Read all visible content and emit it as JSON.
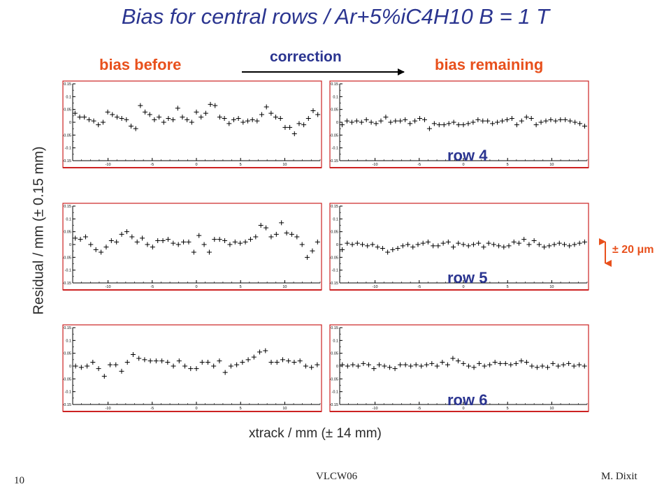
{
  "slide": {
    "title": "Bias for central rows / Ar+5%iC4H10 B = 1 T",
    "left_label": "bias before",
    "arrow_label": "correction",
    "right_label": "bias remaining",
    "ylabel": "Residual / mm (± 0.15 mm)",
    "xlabel": "xtrack / mm (± 14 mm)",
    "band_label": "± 20 μm",
    "page_number": "10",
    "footer_center": "VLCW06",
    "footer_right": "M. Dixit",
    "colors": {
      "title": "#2b3590",
      "accent": "#e8501c",
      "frame": "#cc2222"
    }
  },
  "chart_data": [
    {
      "type": "scatter",
      "row": "",
      "panel": "bias before",
      "xlim": [
        -14,
        14
      ],
      "ylim": [
        -0.15,
        0.15
      ],
      "x_ticks": [
        "-10",
        "-5",
        "0",
        "5",
        "10"
      ],
      "y_ticks": [
        "0.15",
        "0.1",
        "0.05",
        "0",
        "-0.05",
        "-0.1",
        "-0.15"
      ],
      "y": [
        0.035,
        0.02,
        0.02,
        0.01,
        0.005,
        -0.01,
        0.0,
        0.04,
        0.03,
        0.02,
        0.015,
        0.01,
        -0.015,
        -0.025,
        0.065,
        0.04,
        0.03,
        0.01,
        0.02,
        0.0,
        0.015,
        0.01,
        0.055,
        0.02,
        0.01,
        0.0,
        0.04,
        0.02,
        0.035,
        0.07,
        0.065,
        0.02,
        0.015,
        -0.005,
        0.01,
        0.015,
        0.0,
        0.005,
        0.01,
        0.005,
        0.03,
        0.06,
        0.035,
        0.02,
        0.015,
        -0.02,
        -0.02,
        -0.045,
        -0.005,
        -0.01,
        0.015,
        0.045,
        0.03
      ]
    },
    {
      "type": "scatter",
      "row": "row 4",
      "panel": "bias remaining",
      "xlim": [
        -14,
        14
      ],
      "ylim": [
        -0.15,
        0.15
      ],
      "x_ticks": [
        "-10",
        "-5",
        "0",
        "5",
        "10"
      ],
      "y_ticks": [
        "0.15",
        "0.1",
        "0.05",
        "0",
        "-0.05",
        "-0.1",
        "-0.15"
      ],
      "y": [
        -0.01,
        0.005,
        0.0,
        0.005,
        0.0,
        0.01,
        0.0,
        -0.005,
        0.005,
        0.02,
        0.0,
        0.005,
        0.005,
        0.01,
        -0.005,
        0.005,
        0.015,
        0.01,
        -0.025,
        -0.005,
        -0.01,
        -0.01,
        -0.005,
        0.0,
        -0.01,
        -0.01,
        -0.005,
        0.0,
        0.01,
        0.005,
        0.005,
        -0.005,
        0.0,
        0.005,
        0.01,
        0.015,
        -0.01,
        0.005,
        0.02,
        0.015,
        -0.01,
        0.0,
        0.005,
        0.01,
        0.005,
        0.01,
        0.01,
        0.005,
        0.0,
        -0.005,
        -0.015
      ]
    },
    {
      "type": "scatter",
      "row": "",
      "panel": "bias before",
      "xlim": [
        -14,
        14
      ],
      "ylim": [
        -0.15,
        0.15
      ],
      "x_ticks": [
        "-10",
        "-5",
        "0",
        "5",
        "10"
      ],
      "y_ticks": [
        "0.15",
        "0.1",
        "0.05",
        "0",
        "-0.05",
        "-0.1",
        "-0.15"
      ],
      "y": [
        0.025,
        0.02,
        0.03,
        0.0,
        -0.02,
        -0.03,
        -0.01,
        0.015,
        0.01,
        0.04,
        0.05,
        0.03,
        0.01,
        0.025,
        0.0,
        -0.01,
        0.015,
        0.015,
        0.02,
        0.005,
        0.0,
        0.01,
        0.01,
        -0.03,
        0.035,
        0.0,
        -0.03,
        0.02,
        0.02,
        0.015,
        0.0,
        0.01,
        0.005,
        0.01,
        0.02,
        0.03,
        0.075,
        0.065,
        0.03,
        0.04,
        0.085,
        0.045,
        0.04,
        0.03,
        0.0,
        -0.05,
        -0.025,
        0.01
      ]
    },
    {
      "type": "scatter",
      "row": "row 5",
      "panel": "bias remaining",
      "xlim": [
        -14,
        14
      ],
      "ylim": [
        -0.15,
        0.15
      ],
      "x_ticks": [
        "-10",
        "-5",
        "0",
        "5",
        "10"
      ],
      "y_ticks": [
        "0.15",
        "0.1",
        "0.05",
        "0",
        "-0.05",
        "-0.1",
        "-0.15"
      ],
      "y": [
        -0.02,
        0.005,
        0.0,
        0.005,
        0.0,
        -0.005,
        0.0,
        -0.01,
        -0.015,
        -0.03,
        -0.02,
        -0.015,
        -0.005,
        0.0,
        -0.01,
        0.0,
        0.005,
        0.01,
        -0.005,
        -0.005,
        0.005,
        0.01,
        -0.01,
        0.005,
        0.0,
        -0.005,
        0.0,
        0.005,
        -0.01,
        0.005,
        0.0,
        -0.005,
        -0.01,
        -0.005,
        0.01,
        0.005,
        0.02,
        0.0,
        0.015,
        0.0,
        -0.01,
        -0.005,
        0.0,
        0.005,
        0.0,
        -0.005,
        0.0,
        0.005,
        0.01
      ]
    },
    {
      "type": "scatter",
      "row": "",
      "panel": "bias before",
      "xlim": [
        -14,
        14
      ],
      "ylim": [
        -0.15,
        0.15
      ],
      "x_ticks": [
        "-10",
        "-5",
        "0",
        "5",
        "10"
      ],
      "y_ticks": [
        "0.15",
        "0.1",
        "0.05",
        "0",
        "-0.05",
        "-0.1",
        "-0.15"
      ],
      "y": [
        0.0,
        -0.005,
        0.0,
        0.015,
        -0.01,
        -0.04,
        0.005,
        0.005,
        -0.02,
        0.015,
        0.045,
        0.03,
        0.025,
        0.02,
        0.02,
        0.02,
        0.015,
        0.0,
        0.02,
        0.0,
        -0.01,
        -0.01,
        0.015,
        0.015,
        0.0,
        0.02,
        -0.025,
        0.0,
        0.005,
        0.015,
        0.025,
        0.035,
        0.055,
        0.06,
        0.015,
        0.015,
        0.025,
        0.02,
        0.015,
        0.02,
        0.0,
        -0.005,
        0.005
      ]
    },
    {
      "type": "scatter",
      "row": "row 6",
      "panel": "bias remaining",
      "xlim": [
        -14,
        14
      ],
      "ylim": [
        -0.15,
        0.15
      ],
      "x_ticks": [
        "-10",
        "-5",
        "0",
        "5",
        "10"
      ],
      "y_ticks": [
        "0.15",
        "0.1",
        "0.05",
        "0",
        "-0.05",
        "-0.1",
        "-0.15"
      ],
      "y": [
        0.005,
        0.0,
        0.005,
        0.0,
        0.01,
        0.005,
        -0.01,
        0.005,
        0.0,
        -0.005,
        -0.01,
        0.005,
        0.005,
        0.0,
        0.005,
        0.0,
        0.005,
        0.01,
        0.0,
        0.015,
        0.005,
        0.03,
        0.02,
        0.01,
        0.0,
        -0.005,
        0.01,
        0.0,
        0.005,
        0.015,
        0.01,
        0.01,
        0.005,
        0.01,
        0.02,
        0.015,
        0.0,
        -0.005,
        0.0,
        -0.005,
        0.01,
        0.0,
        0.005,
        0.01,
        0.0,
        0.005,
        0.0
      ]
    }
  ]
}
